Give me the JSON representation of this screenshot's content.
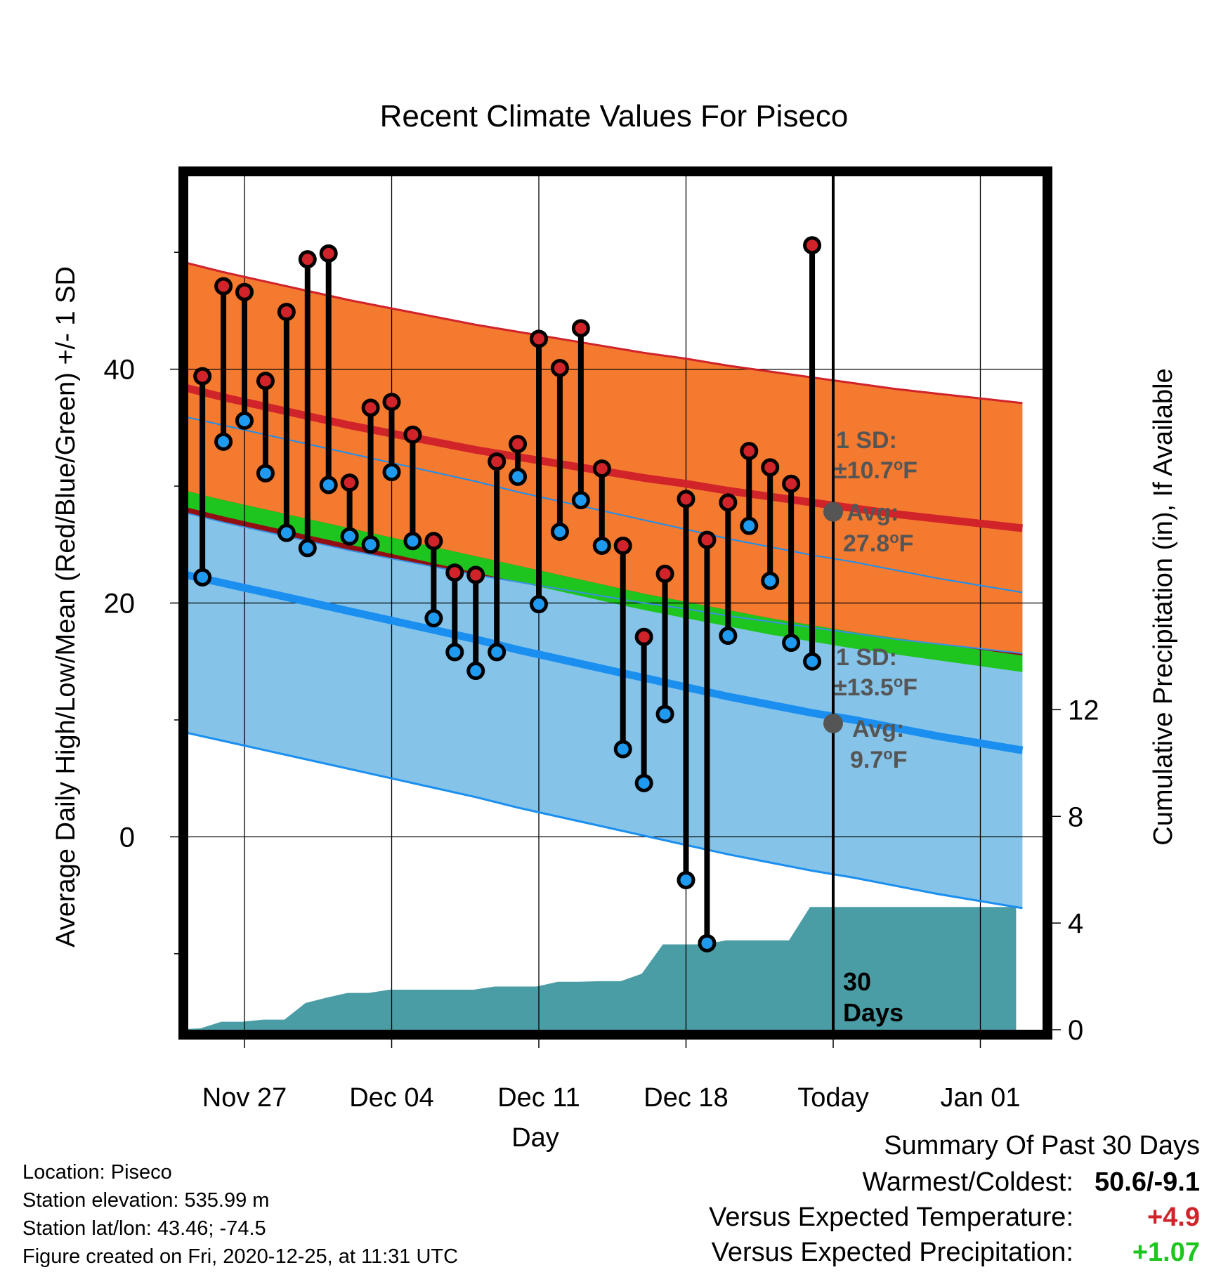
{
  "chart_data": {
    "type": "line",
    "title": "Recent Climate Values For Piseco",
    "xlabel": "Day",
    "ylabel_left": "Average Daily High/Low/Mean (Red/Blue/Green) +/- 1 SD",
    "ylabel_right": "Cumulative Precipitation (in), If Available",
    "y_left_range": [
      -16.5,
      56.5
    ],
    "y_left_ticks": [
      0,
      20,
      40
    ],
    "y_right_range": [
      0,
      32
    ],
    "y_right_ticks": [
      0,
      4,
      8,
      12
    ],
    "x_tick_labels": [
      {
        "day": 3,
        "label": "Nov 27"
      },
      {
        "day": 10,
        "label": "Dec 04"
      },
      {
        "day": 17,
        "label": "Dec 11"
      },
      {
        "day": 24,
        "label": "Dec 18"
      },
      {
        "day": 31,
        "label": "Today"
      },
      {
        "day": 38,
        "label": "Jan 01"
      }
    ],
    "x_range": [
      -0.8,
      39.7
    ],
    "today_day": 31,
    "normal_high": [
      38.5,
      37.6,
      36.8,
      36.0,
      35.2,
      34.5,
      33.8,
      33.1,
      32.5,
      31.9,
      31.3,
      30.7,
      30.2,
      29.6,
      29.1,
      28.6,
      28.1,
      27.6,
      27.2,
      26.8,
      26.4
    ],
    "normal_high_sd": 10.7,
    "normal_low": [
      22.5,
      21.7,
      20.9,
      20.1,
      19.3,
      18.5,
      17.7,
      16.9,
      16.0,
      15.2,
      14.4,
      13.6,
      12.8,
      12.0,
      11.3,
      10.6,
      10.0,
      9.3,
      8.6,
      8.0,
      7.4
    ],
    "normal_low_sd": 13.5,
    "normal_mean_top": [
      29.7,
      28.8,
      28.0,
      27.2,
      26.4,
      25.6,
      24.8,
      24.0,
      23.2,
      22.4,
      21.6,
      20.8,
      20.1,
      19.4,
      18.7,
      18.1,
      17.5,
      17.0,
      16.5,
      16.0,
      15.5
    ],
    "normal_mean_bot": [
      28.3,
      27.4,
      26.6,
      25.8,
      25.0,
      24.2,
      23.4,
      22.6,
      21.8,
      21.0,
      20.2,
      19.4,
      18.7,
      18.0,
      17.3,
      16.7,
      16.1,
      15.6,
      15.1,
      14.6,
      14.1
    ],
    "daily": [
      {
        "day": 1,
        "high": 39.4,
        "low": 22.2
      },
      {
        "day": 2,
        "high": 47.1,
        "low": 33.8
      },
      {
        "day": 3,
        "high": 46.6,
        "low": 35.6
      },
      {
        "day": 4,
        "high": 39.0,
        "low": 31.1
      },
      {
        "day": 5,
        "high": 44.9,
        "low": 26.0
      },
      {
        "day": 6,
        "high": 49.4,
        "low": 24.7
      },
      {
        "day": 7,
        "high": 49.9,
        "low": 30.1
      },
      {
        "day": 8,
        "high": 30.3,
        "low": 25.7
      },
      {
        "day": 9,
        "high": 36.7,
        "low": 25.0
      },
      {
        "day": 10,
        "high": 37.2,
        "low": 31.2
      },
      {
        "day": 11,
        "high": 34.4,
        "low": 25.3
      },
      {
        "day": 12,
        "high": 25.3,
        "low": 18.7
      },
      {
        "day": 13,
        "high": 22.6,
        "low": 15.8
      },
      {
        "day": 14,
        "high": 22.4,
        "low": 14.2
      },
      {
        "day": 15,
        "high": 32.1,
        "low": 15.8
      },
      {
        "day": 16,
        "high": 33.6,
        "low": 30.8
      },
      {
        "day": 17,
        "high": 42.6,
        "low": 19.9
      },
      {
        "day": 18,
        "high": 40.1,
        "low": 26.1
      },
      {
        "day": 19,
        "high": 43.5,
        "low": 28.8
      },
      {
        "day": 20,
        "high": 31.5,
        "low": 24.9
      },
      {
        "day": 21,
        "high": 24.9,
        "low": 7.5
      },
      {
        "day": 22,
        "high": 17.1,
        "low": 4.6
      },
      {
        "day": 23,
        "high": 22.5,
        "low": 10.5
      },
      {
        "day": 24,
        "high": 28.9,
        "low": -3.7
      },
      {
        "day": 25,
        "high": 25.4,
        "low": -9.1
      },
      {
        "day": 26,
        "high": 28.6,
        "low": 17.2
      },
      {
        "day": 27,
        "high": 33.0,
        "low": 26.6
      },
      {
        "day": 28,
        "high": 31.6,
        "low": 21.9
      },
      {
        "day": 29,
        "high": 30.2,
        "low": 16.6
      },
      {
        "day": 30,
        "high": 50.6,
        "low": 15.0
      }
    ],
    "precip_cumulative": [
      {
        "day": -0.8,
        "value": 0.0
      },
      {
        "day": 0.9,
        "value": 0.05
      },
      {
        "day": 1.9,
        "value": 0.3
      },
      {
        "day": 2.9,
        "value": 0.3
      },
      {
        "day": 3.9,
        "value": 0.38
      },
      {
        "day": 4.9,
        "value": 0.38
      },
      {
        "day": 5.9,
        "value": 1.0
      },
      {
        "day": 6.9,
        "value": 1.2
      },
      {
        "day": 7.9,
        "value": 1.38
      },
      {
        "day": 8.9,
        "value": 1.38
      },
      {
        "day": 9.9,
        "value": 1.5
      },
      {
        "day": 10.9,
        "value": 1.5
      },
      {
        "day": 11.9,
        "value": 1.5
      },
      {
        "day": 12.9,
        "value": 1.5
      },
      {
        "day": 13.9,
        "value": 1.5
      },
      {
        "day": 14.9,
        "value": 1.62
      },
      {
        "day": 15.9,
        "value": 1.62
      },
      {
        "day": 16.9,
        "value": 1.62
      },
      {
        "day": 17.9,
        "value": 1.8
      },
      {
        "day": 18.9,
        "value": 1.8
      },
      {
        "day": 19.9,
        "value": 1.82
      },
      {
        "day": 20.9,
        "value": 1.82
      },
      {
        "day": 21.9,
        "value": 2.1
      },
      {
        "day": 22.9,
        "value": 3.2
      },
      {
        "day": 23.9,
        "value": 3.2
      },
      {
        "day": 24.9,
        "value": 3.2
      },
      {
        "day": 25.9,
        "value": 3.35
      },
      {
        "day": 26.9,
        "value": 3.35
      },
      {
        "day": 27.9,
        "value": 3.35
      },
      {
        "day": 28.9,
        "value": 3.35
      },
      {
        "day": 29.9,
        "value": 4.6
      },
      {
        "day": 30.9,
        "value": 4.6
      },
      {
        "day": 39.7,
        "value": 4.6
      }
    ],
    "annotations": {
      "high_sd_label": "1 SD:",
      "high_sd_value": "±10.7",
      "high_avg_label": "Avg:",
      "high_avg_value": "27.8",
      "high_avg": 27.8,
      "low_sd_label": "1 SD:",
      "low_sd_value": "±13.5",
      "low_avg_label": "Avg:",
      "low_avg_value": "9.7",
      "low_avg": 9.7,
      "degree_unit": "o",
      "unit_letter": "F",
      "days_label_1": "30",
      "days_label_2": "Days"
    },
    "colors": {
      "high_band": "#f47a30",
      "high_line": "#d0232a",
      "mean_band": "#920e12",
      "mean_green": "#1ec51e",
      "low_band": "#85c3e9",
      "low_line": "#1a8ff0",
      "precip": "#4a9da5",
      "high_marker": "#d0232a",
      "low_marker": "#1e9af0",
      "annotation": "#555555"
    }
  },
  "footer": {
    "location": "Location: Piseco",
    "elevation": "Station elevation: 535.99 m",
    "latlon": "Station lat/lon: 43.46; -74.5",
    "created": "Figure created on Fri, 2020-12-25, at 11:31 UTC"
  },
  "summary": {
    "title": "Summary Of Past 30 Days",
    "warmest_label": "Warmest/Coldest:",
    "warmest_value": "50.6/-9.1",
    "temp_label": "Versus Expected Temperature:",
    "temp_value": "+4.9",
    "temp_color": "#d0232a",
    "precip_label": "Versus Expected Precipitation:",
    "precip_value": "+1.07",
    "precip_color": "#1ec51e"
  }
}
